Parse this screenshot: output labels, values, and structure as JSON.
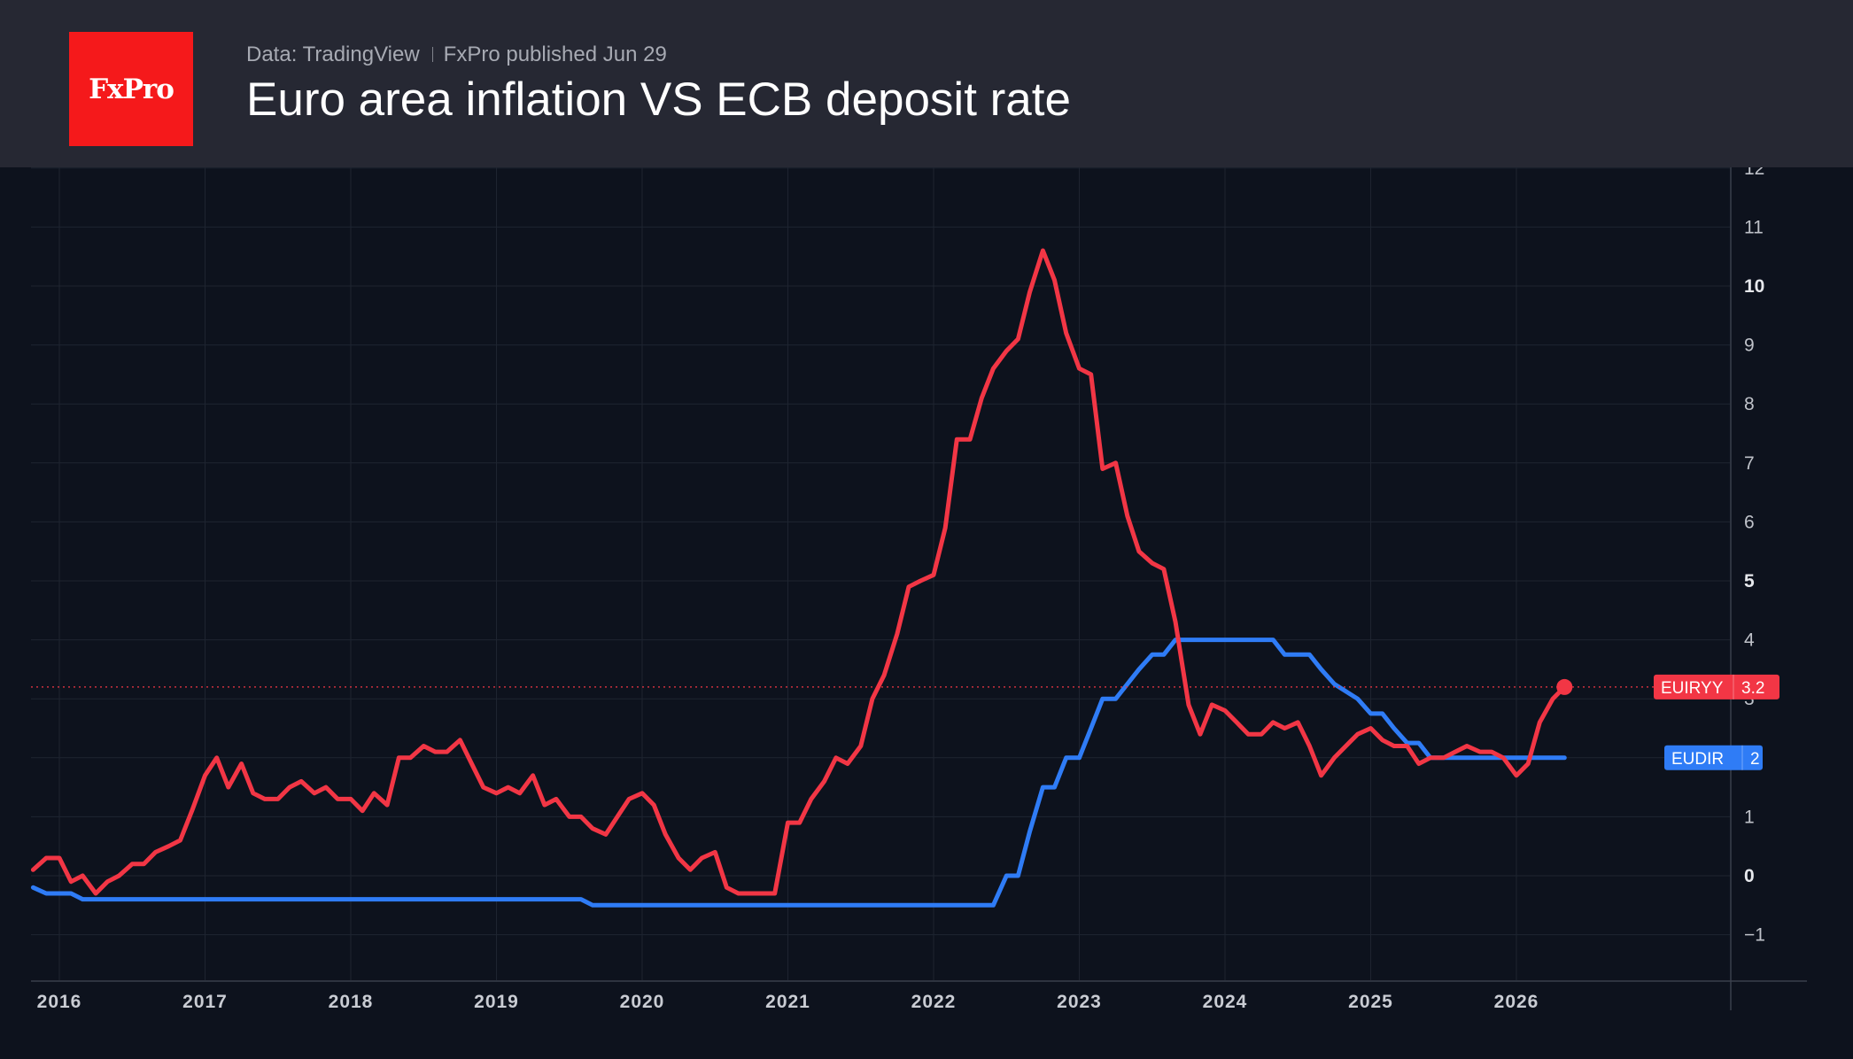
{
  "header": {
    "logo_text": "FxPro",
    "source": "Data: TradingView",
    "published": "FxPro published Jun 29",
    "title": "Euro area inflation VS ECB deposit rate"
  },
  "chart_data": {
    "type": "line",
    "title": "Euro area inflation VS ECB deposit rate",
    "xlabel": "",
    "ylabel": "",
    "xlim": [
      2015.82,
      2026.4
    ],
    "ylim": [
      -1.8,
      12
    ],
    "x_ticks": [
      "2016",
      "2017",
      "2018",
      "2019",
      "2020",
      "2021",
      "2022",
      "2023",
      "2024",
      "2025",
      "2026"
    ],
    "y_ticks": [
      {
        "value": 12,
        "label": "12",
        "bold": false
      },
      {
        "value": 11,
        "label": "11",
        "bold": false
      },
      {
        "value": 10,
        "label": "10",
        "bold": true
      },
      {
        "value": 9,
        "label": "9",
        "bold": false
      },
      {
        "value": 8,
        "label": "8",
        "bold": false
      },
      {
        "value": 7,
        "label": "7",
        "bold": false
      },
      {
        "value": 6,
        "label": "6",
        "bold": false
      },
      {
        "value": 5,
        "label": "5",
        "bold": true
      },
      {
        "value": 4,
        "label": "4",
        "bold": false
      },
      {
        "value": 3,
        "label": "3",
        "bold": false
      },
      {
        "value": 2,
        "label": "2",
        "bold": false
      },
      {
        "value": 1,
        "label": "1",
        "bold": false
      },
      {
        "value": 0,
        "label": "0",
        "bold": true
      },
      {
        "value": -1,
        "label": "−1",
        "bold": false
      }
    ],
    "grid": true,
    "series": [
      {
        "name": "EUIRYY",
        "color": "#f23645",
        "last_value": "3.2",
        "points": [
          [
            2015.82,
            0.1
          ],
          [
            2015.91,
            0.3
          ],
          [
            2016.0,
            0.3
          ],
          [
            2016.08,
            -0.1
          ],
          [
            2016.16,
            0.0
          ],
          [
            2016.25,
            -0.3
          ],
          [
            2016.33,
            -0.1
          ],
          [
            2016.41,
            0.0
          ],
          [
            2016.5,
            0.2
          ],
          [
            2016.58,
            0.2
          ],
          [
            2016.66,
            0.4
          ],
          [
            2016.75,
            0.5
          ],
          [
            2016.83,
            0.6
          ],
          [
            2016.91,
            1.1
          ],
          [
            2017.0,
            1.7
          ],
          [
            2017.08,
            2.0
          ],
          [
            2017.16,
            1.5
          ],
          [
            2017.25,
            1.9
          ],
          [
            2017.33,
            1.4
          ],
          [
            2017.41,
            1.3
          ],
          [
            2017.5,
            1.3
          ],
          [
            2017.58,
            1.5
          ],
          [
            2017.66,
            1.6
          ],
          [
            2017.75,
            1.4
          ],
          [
            2017.83,
            1.5
          ],
          [
            2017.91,
            1.3
          ],
          [
            2018.0,
            1.3
          ],
          [
            2018.08,
            1.1
          ],
          [
            2018.16,
            1.4
          ],
          [
            2018.25,
            1.2
          ],
          [
            2018.33,
            2.0
          ],
          [
            2018.41,
            2.0
          ],
          [
            2018.5,
            2.2
          ],
          [
            2018.58,
            2.1
          ],
          [
            2018.66,
            2.1
          ],
          [
            2018.75,
            2.3
          ],
          [
            2018.83,
            1.9
          ],
          [
            2018.91,
            1.5
          ],
          [
            2019.0,
            1.4
          ],
          [
            2019.08,
            1.5
          ],
          [
            2019.16,
            1.4
          ],
          [
            2019.25,
            1.7
          ],
          [
            2019.33,
            1.2
          ],
          [
            2019.41,
            1.3
          ],
          [
            2019.5,
            1.0
          ],
          [
            2019.58,
            1.0
          ],
          [
            2019.66,
            0.8
          ],
          [
            2019.75,
            0.7
          ],
          [
            2019.83,
            1.0
          ],
          [
            2019.91,
            1.3
          ],
          [
            2020.0,
            1.4
          ],
          [
            2020.08,
            1.2
          ],
          [
            2020.16,
            0.7
          ],
          [
            2020.25,
            0.3
          ],
          [
            2020.33,
            0.1
          ],
          [
            2020.41,
            0.3
          ],
          [
            2020.5,
            0.4
          ],
          [
            2020.58,
            -0.2
          ],
          [
            2020.66,
            -0.3
          ],
          [
            2020.75,
            -0.3
          ],
          [
            2020.83,
            -0.3
          ],
          [
            2020.91,
            -0.3
          ],
          [
            2021.0,
            0.9
          ],
          [
            2021.08,
            0.9
          ],
          [
            2021.16,
            1.3
          ],
          [
            2021.25,
            1.6
          ],
          [
            2021.33,
            2.0
          ],
          [
            2021.41,
            1.9
          ],
          [
            2021.5,
            2.2
          ],
          [
            2021.58,
            3.0
          ],
          [
            2021.66,
            3.4
          ],
          [
            2021.75,
            4.1
          ],
          [
            2021.83,
            4.9
          ],
          [
            2021.91,
            5.0
          ],
          [
            2022.0,
            5.1
          ],
          [
            2022.08,
            5.9
          ],
          [
            2022.16,
            7.4
          ],
          [
            2022.25,
            7.4
          ],
          [
            2022.33,
            8.1
          ],
          [
            2022.41,
            8.6
          ],
          [
            2022.5,
            8.9
          ],
          [
            2022.58,
            9.1
          ],
          [
            2022.66,
            9.9
          ],
          [
            2022.75,
            10.6
          ],
          [
            2022.83,
            10.1
          ],
          [
            2022.91,
            9.2
          ],
          [
            2023.0,
            8.6
          ],
          [
            2023.08,
            8.5
          ],
          [
            2023.16,
            6.9
          ],
          [
            2023.25,
            7.0
          ],
          [
            2023.33,
            6.1
          ],
          [
            2023.41,
            5.5
          ],
          [
            2023.5,
            5.3
          ],
          [
            2023.58,
            5.2
          ],
          [
            2023.66,
            4.3
          ],
          [
            2023.75,
            2.9
          ],
          [
            2023.83,
            2.4
          ],
          [
            2023.91,
            2.9
          ],
          [
            2024.0,
            2.8
          ],
          [
            2024.08,
            2.6
          ],
          [
            2024.16,
            2.4
          ],
          [
            2024.25,
            2.4
          ],
          [
            2024.33,
            2.6
          ],
          [
            2024.41,
            2.5
          ],
          [
            2024.5,
            2.6
          ],
          [
            2024.58,
            2.2
          ],
          [
            2024.66,
            1.7
          ],
          [
            2024.75,
            2.0
          ],
          [
            2024.83,
            2.2
          ],
          [
            2024.91,
            2.4
          ],
          [
            2025.0,
            2.5
          ],
          [
            2025.08,
            2.3
          ],
          [
            2025.16,
            2.2
          ],
          [
            2025.25,
            2.2
          ],
          [
            2025.33,
            1.9
          ],
          [
            2025.41,
            2.0
          ],
          [
            2025.5,
            2.0
          ],
          [
            2025.58,
            2.1
          ],
          [
            2025.66,
            2.2
          ],
          [
            2025.75,
            2.1
          ],
          [
            2025.83,
            2.1
          ],
          [
            2025.91,
            2.0
          ],
          [
            2026.0,
            1.7
          ],
          [
            2026.08,
            1.9
          ],
          [
            2026.16,
            2.6
          ],
          [
            2026.25,
            3.0
          ],
          [
            2026.33,
            3.2
          ]
        ]
      },
      {
        "name": "EUDIR",
        "color": "#2f7cf6",
        "last_value": "2",
        "points": [
          [
            2015.82,
            -0.2
          ],
          [
            2015.91,
            -0.3
          ],
          [
            2016.08,
            -0.3
          ],
          [
            2016.16,
            -0.4
          ],
          [
            2019.58,
            -0.4
          ],
          [
            2019.66,
            -0.5
          ],
          [
            2022.41,
            -0.5
          ],
          [
            2022.5,
            0.0
          ],
          [
            2022.58,
            0.0
          ],
          [
            2022.66,
            0.75
          ],
          [
            2022.75,
            1.5
          ],
          [
            2022.83,
            1.5
          ],
          [
            2022.91,
            2.0
          ],
          [
            2023.0,
            2.0
          ],
          [
            2023.08,
            2.5
          ],
          [
            2023.16,
            3.0
          ],
          [
            2023.25,
            3.0
          ],
          [
            2023.33,
            3.25
          ],
          [
            2023.41,
            3.5
          ],
          [
            2023.5,
            3.75
          ],
          [
            2023.58,
            3.75
          ],
          [
            2023.66,
            4.0
          ],
          [
            2024.33,
            4.0
          ],
          [
            2024.41,
            3.75
          ],
          [
            2024.58,
            3.75
          ],
          [
            2024.66,
            3.5
          ],
          [
            2024.75,
            3.25
          ],
          [
            2024.91,
            3.0
          ],
          [
            2025.0,
            2.75
          ],
          [
            2025.08,
            2.75
          ],
          [
            2025.16,
            2.5
          ],
          [
            2025.25,
            2.25
          ],
          [
            2025.33,
            2.25
          ],
          [
            2025.41,
            2.0
          ],
          [
            2026.33,
            2.0
          ]
        ]
      }
    ]
  }
}
